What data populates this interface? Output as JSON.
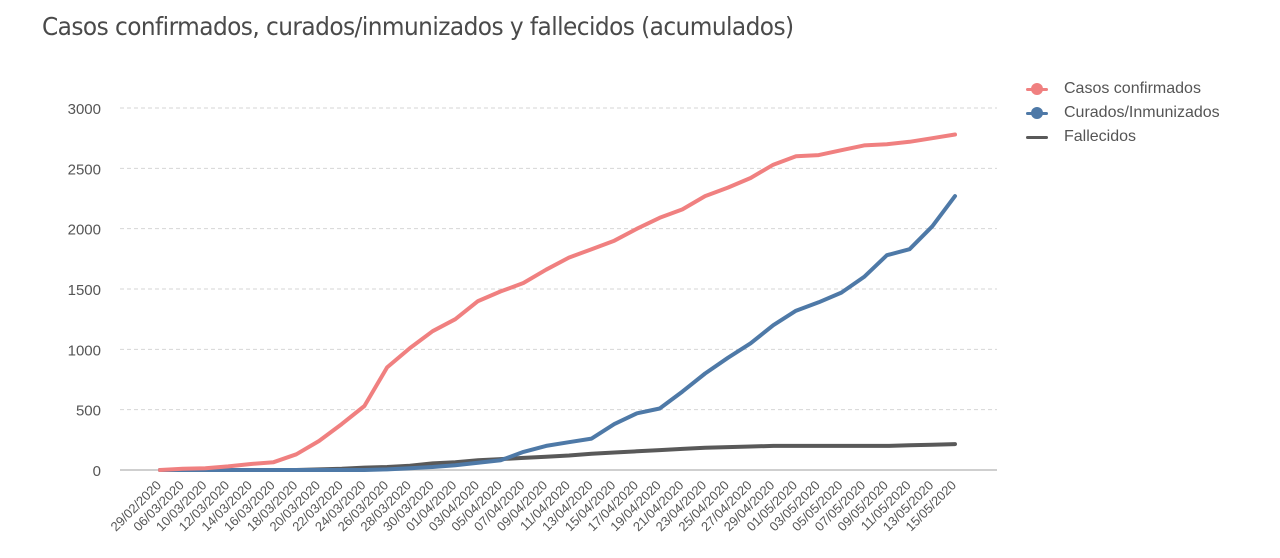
{
  "chart_data": {
    "type": "line",
    "title": "Casos confirmados, curados/inmunizados y fallecidos (acumulados)",
    "xlabel": "",
    "ylabel": "",
    "ylim": [
      0,
      3000
    ],
    "yticks": [
      0,
      500,
      1000,
      1500,
      2000,
      2500,
      3000
    ],
    "grid": true,
    "legend_position": "right-top",
    "categories": [
      "29/02/2020",
      "06/03/2020",
      "10/03/2020",
      "12/03/2020",
      "14/03/2020",
      "16/03/2020",
      "18/03/2020",
      "20/03/2020",
      "22/03/2020",
      "24/03/2020",
      "26/03/2020",
      "28/03/2020",
      "30/03/2020",
      "01/04/2020",
      "03/04/2020",
      "05/04/2020",
      "07/04/2020",
      "09/04/2020",
      "11/04/2020",
      "13/04/2020",
      "15/04/2020",
      "17/04/2020",
      "19/04/2020",
      "21/04/2020",
      "23/04/2020",
      "25/04/2020",
      "27/04/2020",
      "29/04/2020",
      "01/05/2020",
      "03/05/2020",
      "05/05/2020",
      "07/05/2020",
      "09/05/2020",
      "11/05/2020",
      "13/05/2020",
      "15/05/2020"
    ],
    "series": [
      {
        "name": "Casos confirmados",
        "color": "#f08080",
        "marker": "circle",
        "values": [
          0,
          10,
          15,
          30,
          50,
          65,
          130,
          240,
          380,
          530,
          850,
          1010,
          1150,
          1250,
          1400,
          1480,
          1550,
          1660,
          1760,
          1830,
          1900,
          2000,
          2090,
          2160,
          2270,
          2340,
          2420,
          2530,
          2600,
          2610,
          2650,
          2690,
          2700,
          2720,
          2750,
          2780
        ]
      },
      {
        "name": "Curados/Inmunizados",
        "color": "#4e79a7",
        "marker": "circle",
        "values": [
          0,
          0,
          0,
          0,
          0,
          0,
          0,
          0,
          0,
          0,
          5,
          15,
          25,
          40,
          60,
          80,
          150,
          200,
          230,
          260,
          380,
          470,
          510,
          650,
          800,
          930,
          1050,
          1200,
          1320,
          1390,
          1470,
          1600,
          1780,
          1830,
          2020,
          2270
        ]
      },
      {
        "name": "Fallecidos",
        "color": "#595959",
        "marker": "none",
        "values": [
          0,
          0,
          0,
          0,
          0,
          0,
          0,
          5,
          10,
          20,
          25,
          35,
          55,
          65,
          80,
          90,
          100,
          110,
          120,
          135,
          145,
          155,
          165,
          175,
          185,
          190,
          195,
          200,
          200,
          200,
          200,
          200,
          200,
          205,
          210,
          215
        ]
      }
    ]
  },
  "legend": {
    "items": [
      {
        "label": "Casos confirmados",
        "color": "#f08080",
        "type": "line-dot"
      },
      {
        "label": "Curados/Inmunizados",
        "color": "#4e79a7",
        "type": "line-dot"
      },
      {
        "label": "Fallecidos",
        "color": "#595959",
        "type": "line"
      }
    ]
  }
}
